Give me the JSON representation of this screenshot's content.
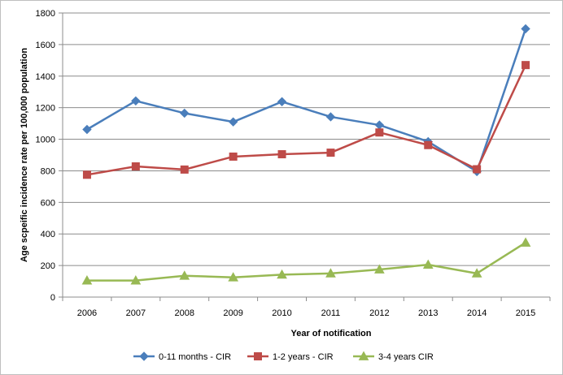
{
  "chart_data": {
    "type": "line",
    "title": "",
    "xlabel": "Year of notification",
    "ylabel": "Age scpeific incidence  rate per 100,000 population",
    "categories": [
      "2006",
      "2007",
      "2008",
      "2009",
      "2010",
      "2011",
      "2012",
      "2013",
      "2014",
      "2015"
    ],
    "ylim": [
      0,
      1800
    ],
    "yticks": [
      0,
      200,
      400,
      600,
      800,
      1000,
      1200,
      1400,
      1600,
      1800
    ],
    "grid": true,
    "legend_position": "bottom",
    "series": [
      {
        "name": "0-11 months - CIR",
        "color": "#4a7ebb",
        "marker": "diamond",
        "values": [
          1062,
          1243,
          1165,
          1110,
          1238,
          1142,
          1090,
          985,
          795,
          1700
        ]
      },
      {
        "name": "1-2 years - CIR",
        "color": "#be4b48",
        "marker": "square",
        "values": [
          775,
          828,
          808,
          890,
          905,
          915,
          1043,
          963,
          810,
          1470
        ]
      },
      {
        "name": "3-4 years CIR",
        "color": "#98b954",
        "marker": "triangle",
        "values": [
          105,
          105,
          135,
          125,
          142,
          150,
          175,
          205,
          150,
          345
        ]
      }
    ]
  }
}
